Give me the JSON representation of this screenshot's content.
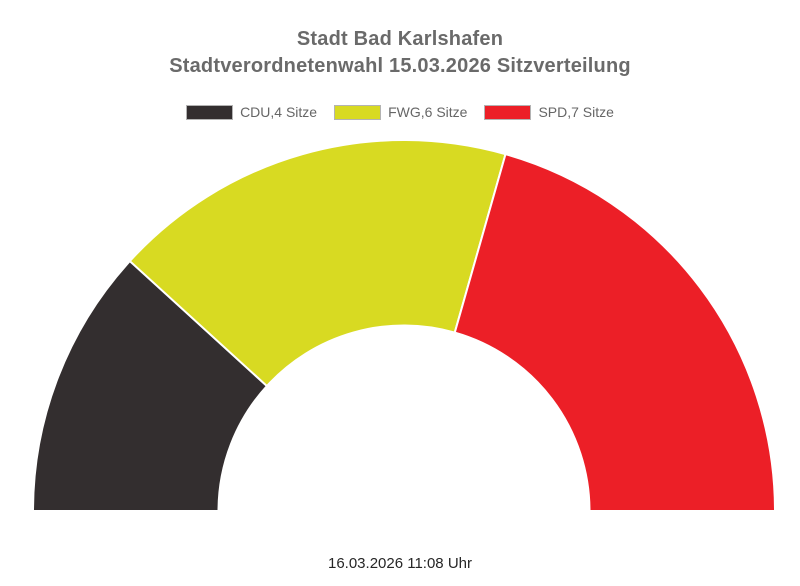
{
  "title": {
    "line1": "Stadt Bad Karlshafen",
    "line2": "Stadtverordnetenwahl 15.03.2026 Sitzverteilung"
  },
  "legend": [
    {
      "label": "CDU,4 Sitze",
      "color": "#332e2f"
    },
    {
      "label": "FWG,6 Sitze",
      "color": "#d8da22"
    },
    {
      "label": "SPD,7 Sitze",
      "color": "#ec1f27"
    }
  ],
  "footer": {
    "timestamp": "16.03.2026 11:08 Uhr"
  },
  "chart_data": {
    "type": "pie",
    "subtype": "half-donut",
    "title": "Stadt Bad Karlshafen — Stadtverordnetenwahl 15.03.2026 Sitzverteilung",
    "categories": [
      "CDU",
      "FWG",
      "SPD"
    ],
    "values": [
      4,
      6,
      7
    ],
    "total_seats": 17,
    "unit": "Sitze",
    "colors": [
      "#332e2f",
      "#d8da22",
      "#ec1f27"
    ],
    "legend_position": "top",
    "start_angle_deg": 180,
    "end_angle_deg": 0,
    "inner_radius_ratio": 0.5,
    "separator_color": "#ffffff"
  }
}
